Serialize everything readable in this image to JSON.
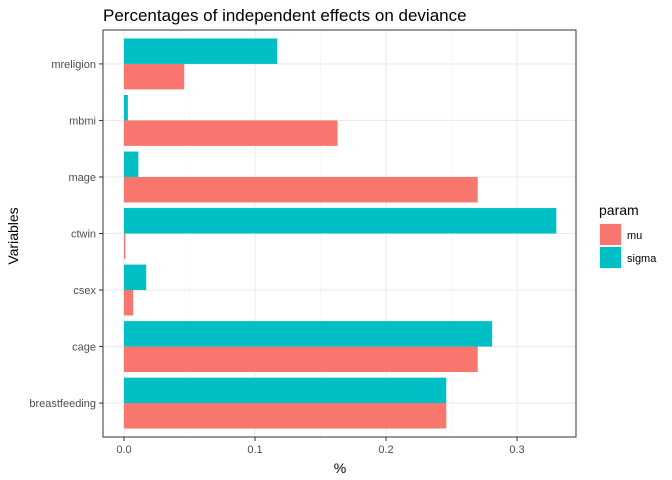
{
  "chart_data": {
    "type": "bar",
    "orientation": "horizontal",
    "title": "Percentages of independent effects on deviance",
    "xlabel": "%",
    "ylabel": "Variables",
    "categories": [
      "breastfeeding",
      "cage",
      "csex",
      "ctwin",
      "mage",
      "mbmi",
      "mreligion"
    ],
    "series": [
      {
        "name": "mu",
        "color": "#F8766D",
        "values": [
          0.246,
          0.27,
          0.007,
          0.001,
          0.27,
          0.163,
          0.046
        ]
      },
      {
        "name": "sigma",
        "color": "#00BFC4",
        "values": [
          0.246,
          0.281,
          0.017,
          0.33,
          0.011,
          0.003,
          0.117
        ]
      }
    ],
    "xlim": [
      -0.016,
      0.345
    ],
    "xticks": [
      0.0,
      0.1,
      0.2,
      0.3
    ],
    "xtick_labels": [
      "0.0",
      "0.1",
      "0.2",
      "0.3"
    ],
    "legend_title": "param",
    "legend_position": "right",
    "grid": true,
    "theme": "bw"
  }
}
